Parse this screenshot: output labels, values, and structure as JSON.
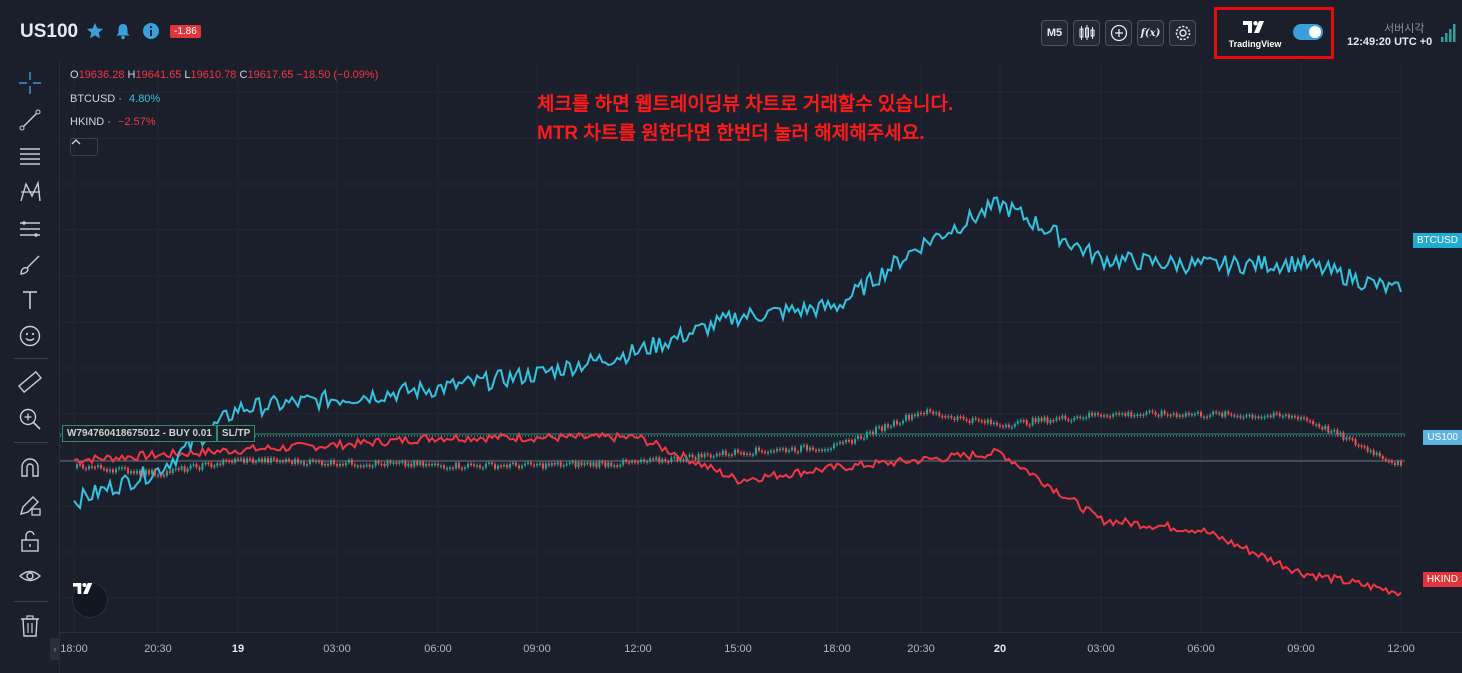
{
  "header": {
    "symbol": "US100",
    "change_badge": "-1.86",
    "timeframe": "M5",
    "fx_label": "f(x)",
    "tradingview_label": "TradingView",
    "tradingview_toggle": true,
    "server_time_label": "서버시각",
    "server_time": "12:49:20 UTC +0"
  },
  "legend": {
    "ohlc": [
      {
        "k": "O",
        "v": "19636.28"
      },
      {
        "k": "H",
        "v": "19641.65"
      },
      {
        "k": "L",
        "v": "19610.78"
      },
      {
        "k": "C",
        "v": "19617.65"
      }
    ],
    "change": "−18.50 (−0.09%)",
    "btc_name": "BTCUSD",
    "btc_value": "4.80%",
    "hk_name": "HKIND",
    "hk_value": "−2.57%"
  },
  "annotation": {
    "line1": "체크를 하면 웹트레이딩뷰 차트로 거래할수 있습니다.",
    "line2": "MTR 차트를 원한다면 한번더 눌러 해제해주세요."
  },
  "order": {
    "label": "W794760418675012 - BUY 0.01",
    "sltp": "SL/TP"
  },
  "price_tags": {
    "btc": "BTCUSD",
    "us100": "US100",
    "hk": "HKIND"
  },
  "x_axis": {
    "ticks": [
      "18:00",
      "20:30",
      "19",
      "03:00",
      "06:00",
      "09:00",
      "12:00",
      "15:00",
      "18:00",
      "20:30",
      "20",
      "03:00",
      "06:00",
      "09:00",
      "12:00"
    ],
    "bold_ticks": [
      "19",
      "20"
    ]
  },
  "colors": {
    "btc": "#33c3e0",
    "us100_up": "#26a69a",
    "us100_down": "#ef5350",
    "hk": "#f23645",
    "annotation": "#ff1a1a",
    "highlight_box": "#e80b0b"
  },
  "chart_data": {
    "type": "line",
    "title": "",
    "series": [
      {
        "name": "BTCUSD",
        "x": [
          "18:00",
          "20:30",
          "19",
          "03:00",
          "06:00",
          "09:00",
          "12:00",
          "15:00",
          "18:00",
          "20:30",
          "20",
          "03:00",
          "06:00",
          "09:00",
          "12:00"
        ],
        "values": [
          -2.0,
          -0.5,
          2.5,
          3.0,
          3.5,
          4.2,
          5.3,
          7.0,
          7.5,
          10.5,
          12.5,
          9.8,
          9.5,
          9.6,
          8.2
        ]
      },
      {
        "name": "US100",
        "x": [
          "18:00",
          "20:30",
          "19",
          "03:00",
          "06:00",
          "09:00",
          "12:00",
          "15:00",
          "18:00",
          "20:30",
          "20",
          "03:00",
          "06:00",
          "09:00",
          "12:00"
        ],
        "values": [
          -0.2,
          -0.5,
          0.0,
          -0.1,
          -0.2,
          -0.2,
          -0.1,
          0.3,
          0.5,
          1.8,
          1.3,
          1.7,
          1.7,
          1.6,
          -0.2
        ]
      },
      {
        "name": "HKIND",
        "x": [
          "18:00",
          "20:30",
          "19",
          "03:00",
          "06:00",
          "09:00",
          "12:00",
          "15:00",
          "18:00",
          "20:30",
          "20",
          "03:00",
          "06:00",
          "09:00",
          "12:00"
        ],
        "values": [
          0.0,
          0.2,
          0.4,
          0.6,
          0.9,
          0.9,
          0.9,
          -0.8,
          -0.3,
          0.0,
          0.3,
          -2.4,
          -2.8,
          -4.5,
          -5.3
        ]
      }
    ]
  }
}
